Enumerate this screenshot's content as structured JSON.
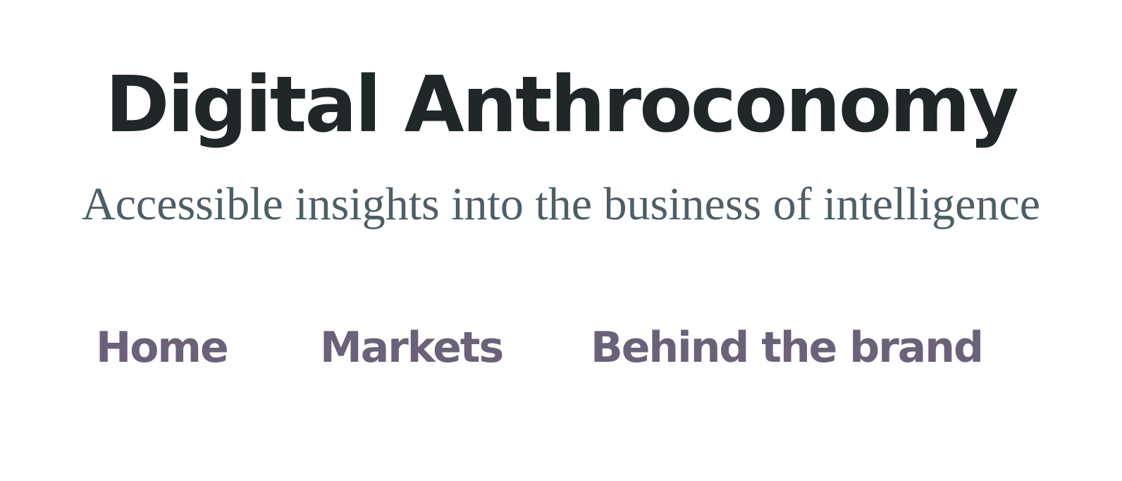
{
  "header": {
    "title": "Digital Anthroconomy",
    "tagline": "Accessible insights into the business of intelligence"
  },
  "nav": {
    "items": [
      {
        "label": "Home"
      },
      {
        "label": "Markets"
      },
      {
        "label": "Behind the brand"
      }
    ]
  },
  "colors": {
    "title": "#212628",
    "tagline": "#4e5e66",
    "nav_link": "#6b6179",
    "background": "#ffffff"
  }
}
